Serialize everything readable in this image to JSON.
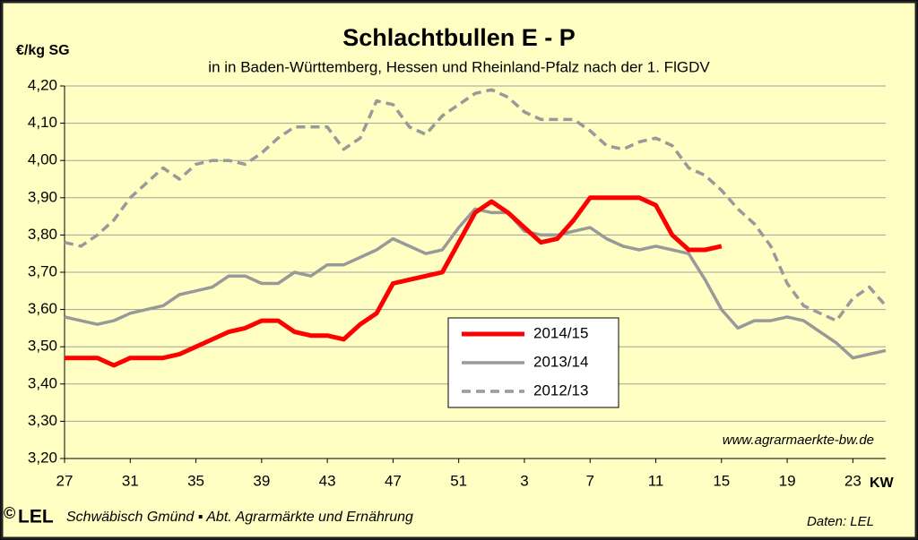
{
  "chart_data": {
    "type": "line",
    "title": "Schlachtbullen E - P",
    "subtitle": "in in Baden-Württemberg, Hessen und Rheinland-Pfalz  nach der 1. FlGDV",
    "y_label": "€/kg SG",
    "x_label": "KW",
    "source_url": "www.agrarmaerkte-bw.de",
    "logo_copyright": "©",
    "logo": "LEL",
    "footer": "Schwäbisch Gmünd ▪ Abt. Agrarmärkte und Ernährung",
    "data_source": "Daten: LEL",
    "categories": [
      "27",
      null,
      null,
      null,
      "31",
      null,
      null,
      null,
      "35",
      null,
      null,
      null,
      "39",
      null,
      null,
      null,
      "43",
      null,
      null,
      null,
      "47",
      null,
      null,
      null,
      "51",
      null,
      null,
      null,
      "3",
      null,
      null,
      null,
      "7",
      null,
      null,
      null,
      "11",
      null,
      null,
      null,
      "15",
      null,
      null,
      null,
      "19",
      null,
      null,
      null,
      "23",
      null,
      null
    ],
    "ylim": [
      3.2,
      4.2
    ],
    "yticks": [
      {
        "value": 3.2,
        "label": "3,20"
      },
      {
        "value": 3.3,
        "label": "3,30"
      },
      {
        "value": 3.4,
        "label": "3,40"
      },
      {
        "value": 3.5,
        "label": "3,50"
      },
      {
        "value": 3.6,
        "label": "3,60"
      },
      {
        "value": 3.7,
        "label": "3,70"
      },
      {
        "value": 3.8,
        "label": "3,80"
      },
      {
        "value": 3.9,
        "label": "3,90"
      },
      {
        "value": 4.0,
        "label": "4,00"
      },
      {
        "value": 4.1,
        "label": "4,10"
      },
      {
        "value": 4.2,
        "label": "4,20"
      }
    ],
    "grid": true,
    "series": [
      {
        "name": "2014/15",
        "color": "#ff0000",
        "style": "solid",
        "values": [
          3.47,
          3.47,
          3.47,
          3.45,
          3.47,
          3.47,
          3.47,
          3.48,
          3.5,
          3.52,
          3.54,
          3.55,
          3.57,
          3.57,
          3.54,
          3.53,
          3.53,
          3.52,
          3.56,
          3.59,
          3.67,
          3.68,
          3.69,
          3.7,
          3.78,
          3.86,
          3.89,
          3.86,
          3.82,
          3.78,
          3.79,
          3.84,
          3.9,
          3.9,
          3.9,
          3.9,
          3.88,
          3.8,
          3.76,
          3.76,
          3.77,
          null,
          null,
          null,
          null,
          null,
          null,
          null,
          null,
          null,
          null
        ]
      },
      {
        "name": "2013/14",
        "color": "#999999",
        "style": "solid",
        "values": [
          3.58,
          3.57,
          3.56,
          3.57,
          3.59,
          3.6,
          3.61,
          3.64,
          3.65,
          3.66,
          3.69,
          3.69,
          3.67,
          3.67,
          3.7,
          3.69,
          3.72,
          3.72,
          3.74,
          3.76,
          3.79,
          3.77,
          3.75,
          3.76,
          3.82,
          3.87,
          3.86,
          3.86,
          3.81,
          3.8,
          3.8,
          3.81,
          3.82,
          3.79,
          3.77,
          3.76,
          3.77,
          3.76,
          3.75,
          3.68,
          3.6,
          3.55,
          3.57,
          3.57,
          3.58,
          3.57,
          3.54,
          3.51,
          3.47,
          3.48,
          3.49
        ]
      },
      {
        "name": "2012/13",
        "color": "#999999",
        "style": "dashed",
        "values": [
          3.78,
          3.77,
          3.8,
          3.84,
          3.9,
          3.94,
          3.98,
          3.95,
          3.99,
          4.0,
          4.0,
          3.99,
          4.02,
          4.06,
          4.09,
          4.09,
          4.09,
          4.03,
          4.06,
          4.16,
          4.15,
          4.09,
          4.07,
          4.12,
          4.15,
          4.18,
          4.19,
          4.17,
          4.13,
          4.11,
          4.11,
          4.11,
          4.08,
          4.04,
          4.03,
          4.05,
          4.06,
          4.04,
          3.98,
          3.96,
          3.92,
          3.87,
          3.83,
          3.77,
          3.67,
          3.61,
          3.59,
          3.57,
          3.63,
          3.66,
          3.61
        ]
      }
    ],
    "legend": "center"
  }
}
